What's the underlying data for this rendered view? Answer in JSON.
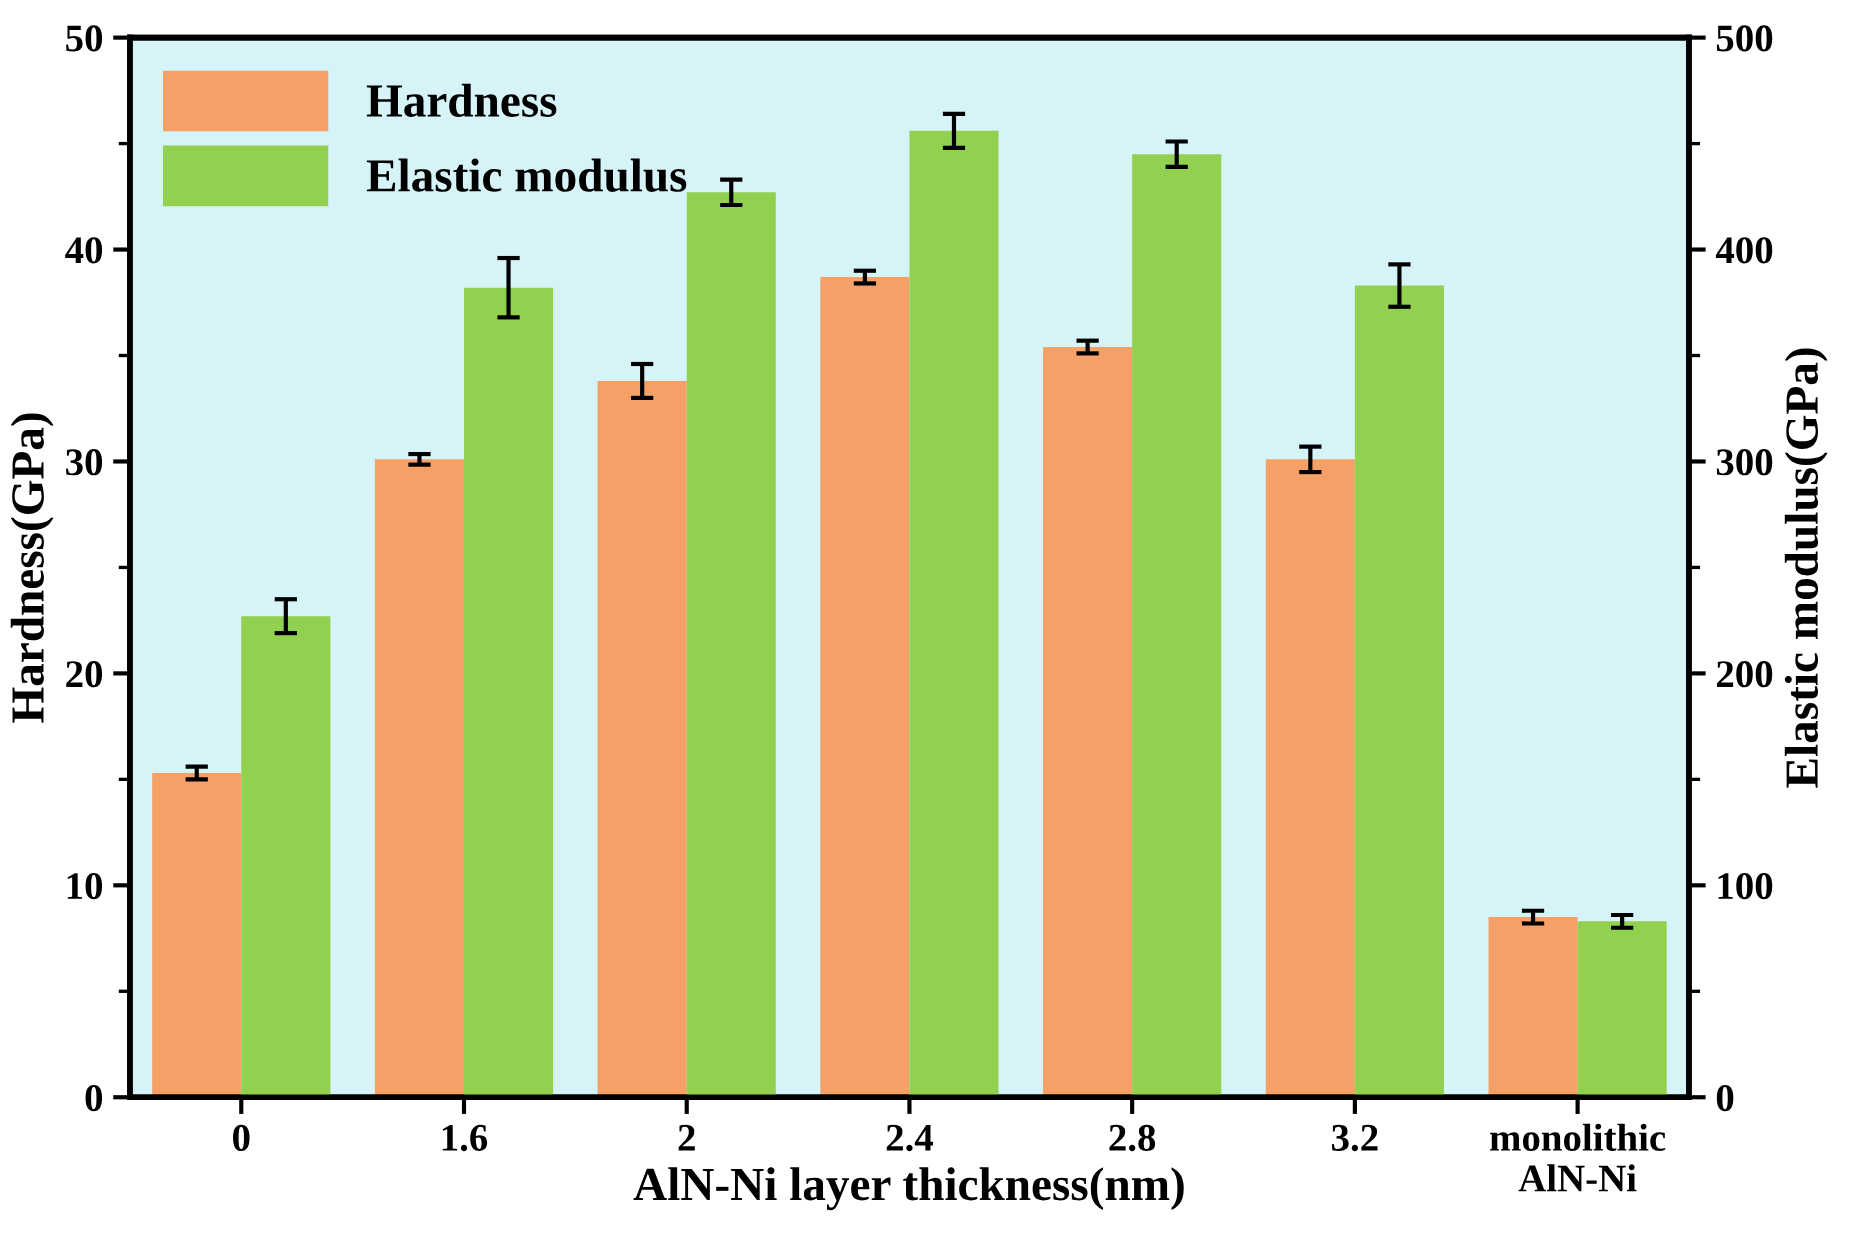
{
  "chart_data": {
    "type": "bar",
    "xlabel": "AlN-Ni layer thickness(nm)",
    "ylabel": "Hardness(GPa)",
    "y2label": "Elastic modulus(GPa)",
    "categories": [
      "0",
      "1.6",
      "2",
      "2.4",
      "2.8",
      "3.2",
      "monolithic\nAlN-Ni"
    ],
    "series": [
      {
        "name": "Hardness",
        "color": "#f5a067",
        "values": [
          15.3,
          30.1,
          33.8,
          38.7,
          35.4,
          30.1,
          8.5
        ],
        "errors": [
          0.3,
          0.25,
          0.8,
          0.3,
          0.3,
          0.6,
          0.3
        ]
      },
      {
        "name": "Elastic modulus",
        "color": "#92d050",
        "axis": "y2",
        "values": [
          227,
          382,
          427,
          456,
          445,
          383,
          83
        ],
        "errors": [
          8,
          14,
          6,
          8,
          6,
          10,
          3
        ]
      }
    ],
    "ylim": [
      0,
      50
    ],
    "yticks": [
      0,
      10,
      20,
      30,
      40,
      50
    ],
    "y2lim": [
      0,
      500
    ],
    "y2ticks": [
      0,
      100,
      200,
      300,
      400,
      500
    ],
    "legend": "top left",
    "grid": false
  }
}
